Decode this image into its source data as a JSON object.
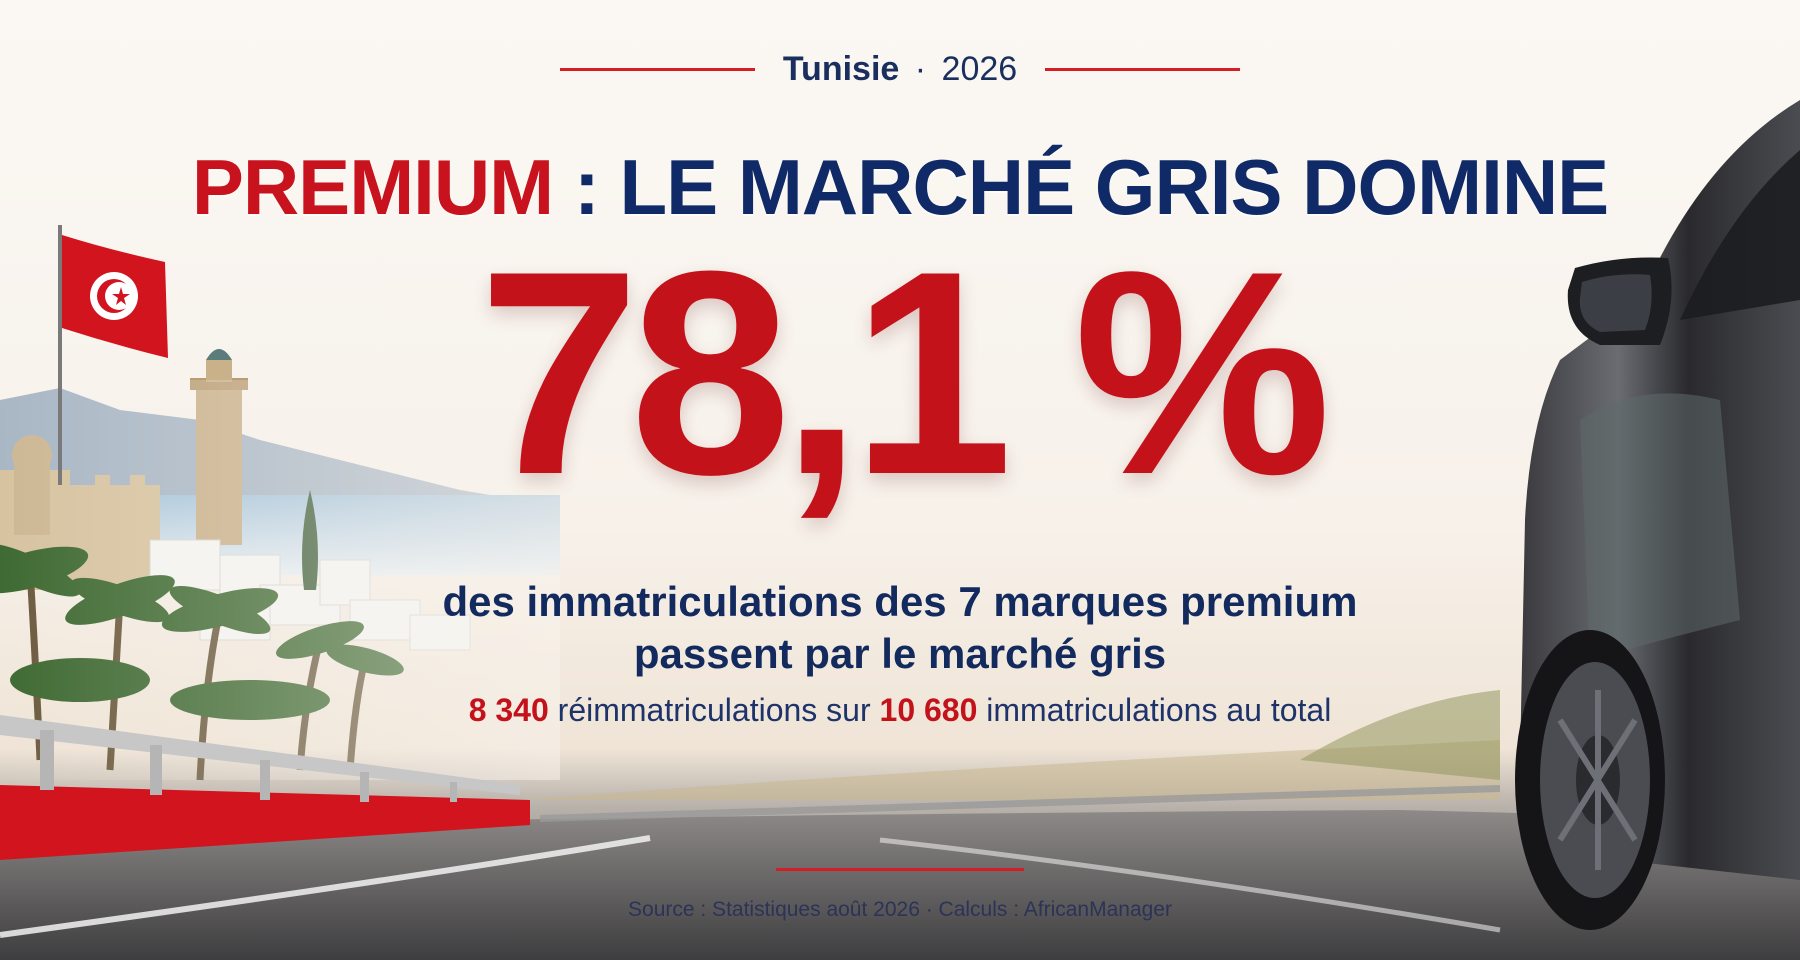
{
  "header": {
    "country": "Tunisie",
    "separator": "·",
    "year": "2026"
  },
  "headline": {
    "accent": "PREMIUM",
    "rest": " : LE MARCHÉ GRIS DOMINE"
  },
  "stat": {
    "value": "78,1 %"
  },
  "subtitle": {
    "line1": "des immatriculations des 7 marques premium",
    "line2": "passent par le marché gris"
  },
  "detail": {
    "reimmatriculations": "8 340",
    "text1": " réimmatriculations sur ",
    "total": "10 680",
    "text2": " immatriculations au total"
  },
  "footer": {
    "source": "Source : Statistiques août 2026 · Calculs : AfricanManager"
  },
  "colors": {
    "accent_red": "#c4121b",
    "navy": "#0f2a66"
  },
  "icons": [
    "tunisia-flag",
    "car"
  ]
}
